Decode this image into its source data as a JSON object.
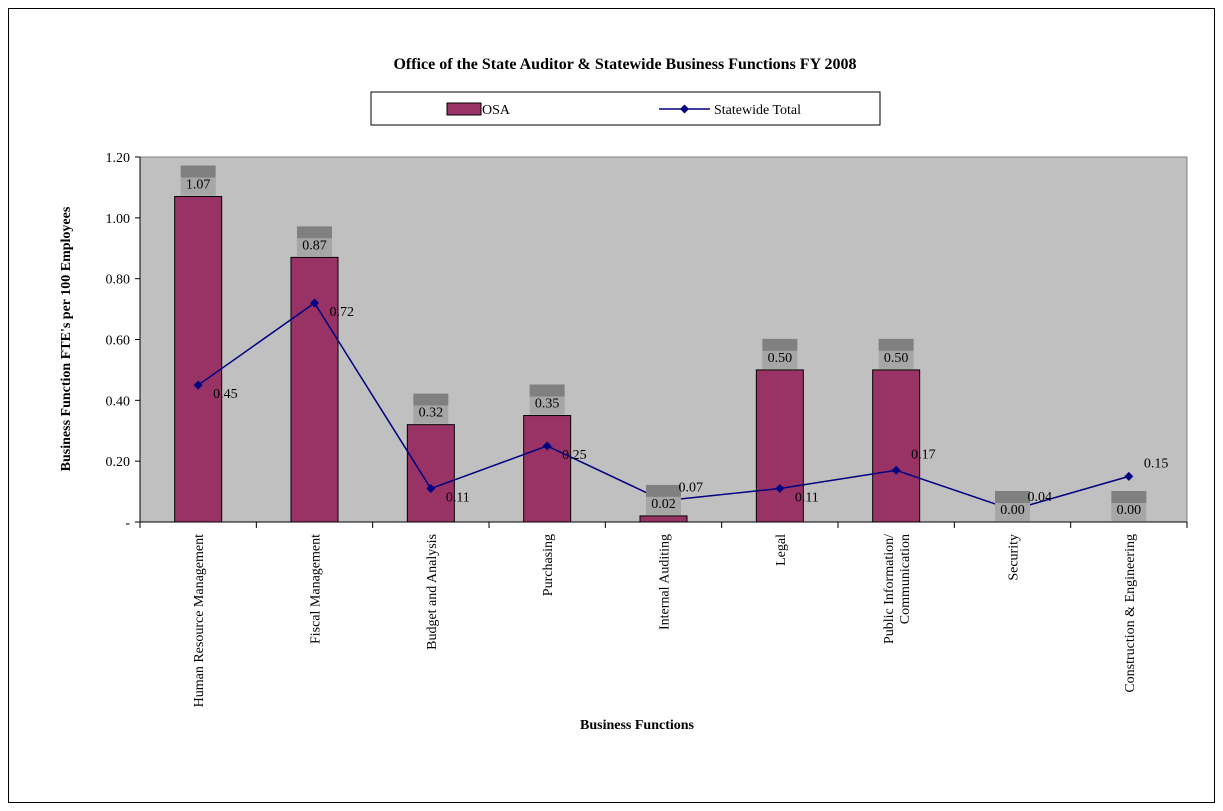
{
  "chart_data": {
    "type": "bar",
    "title": "Office of the State Auditor & Statewide Business Functions FY 2008",
    "xlabel": "Business Functions",
    "ylabel": "Business Function FTE's per 100 Employees",
    "ylim": [
      0,
      1.2
    ],
    "yticks": [
      "-",
      "0.20",
      "0.40",
      "0.60",
      "0.80",
      "1.00",
      "1.20"
    ],
    "ytick_values": [
      0,
      0.2,
      0.4,
      0.6,
      0.8,
      1.0,
      1.2
    ],
    "categories": [
      "Human Resource Management",
      "Fiscal Management",
      "Budget and Analysis",
      "Purchasing",
      "Internal Auditing",
      "Legal",
      "Public Information/ Communication",
      "Security",
      "Construction & Engineering"
    ],
    "category_lines": [
      [
        "Human Resource Management"
      ],
      [
        "Fiscal Management"
      ],
      [
        "Budget and Analysis"
      ],
      [
        "Purchasing"
      ],
      [
        "Internal Auditing"
      ],
      [
        "Legal"
      ],
      [
        "Public Information/",
        "Communication"
      ],
      [
        "Security"
      ],
      [
        "Construction & Engineering"
      ]
    ],
    "series": [
      {
        "name": "OSA",
        "kind": "bar",
        "color": "#993366",
        "values": [
          1.07,
          0.87,
          0.32,
          0.35,
          0.02,
          0.5,
          0.5,
          0.0,
          0.0
        ],
        "labels": [
          "1.07",
          "0.87",
          "0.32",
          "0.35",
          "0.02",
          "0.50",
          "0.50",
          "0.00",
          "0.00"
        ]
      },
      {
        "name": "Statewide Total",
        "kind": "line",
        "color": "#000080",
        "values": [
          0.45,
          0.72,
          0.11,
          0.25,
          0.07,
          0.11,
          0.17,
          0.04,
          0.15
        ],
        "labels": [
          "0.45",
          "0.72",
          "0.11",
          "0.25",
          "0.07",
          "0.11",
          "0.17",
          "0.04",
          "0.15"
        ]
      }
    ],
    "plot_background": "#c0c0c0",
    "legend_position": "top",
    "grid": false
  }
}
